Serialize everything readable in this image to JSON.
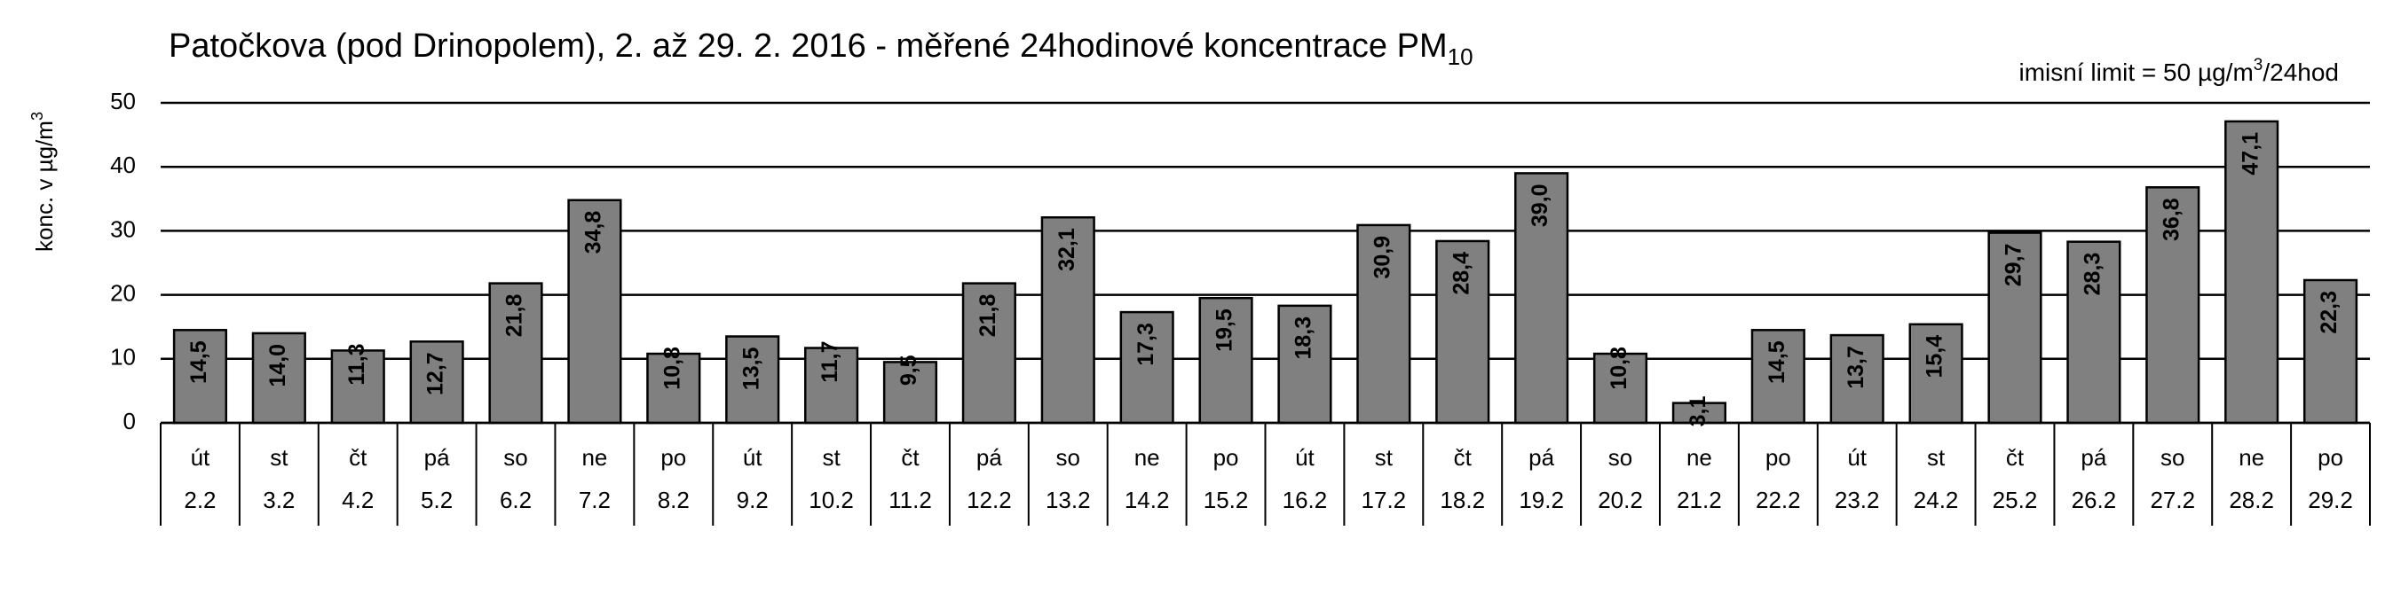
{
  "chart_data": {
    "type": "bar",
    "title": "Patočkova (pod Drinopolem), 2. až 29. 2. 2016 - měřené 24hodinové koncentrace PM",
    "title_subscript": "10",
    "annotation": [
      "imisní limit = 50 µg/m",
      "3",
      "/24hod"
    ],
    "y_label": [
      "konc. v µg/m",
      "3"
    ],
    "weekdays": [
      "út",
      "st",
      "čt",
      "pá",
      "so",
      "ne",
      "po",
      "út",
      "st",
      "čt",
      "pá",
      "so",
      "ne",
      "po",
      "út",
      "st",
      "čt",
      "pá",
      "so",
      "ne",
      "po",
      "út",
      "st",
      "čt",
      "pá",
      "so",
      "ne",
      "po"
    ],
    "categories": [
      "2.2",
      "3.2",
      "4.2",
      "5.2",
      "6.2",
      "7.2",
      "8.2",
      "9.2",
      "10.2",
      "11.2",
      "12.2",
      "13.2",
      "14.2",
      "15.2",
      "16.2",
      "17.2",
      "18.2",
      "19.2",
      "20.2",
      "21.2",
      "22.2",
      "23.2",
      "24.2",
      "25.2",
      "26.2",
      "27.2",
      "28.2",
      "29.2"
    ],
    "values": [
      14.5,
      14.0,
      11.3,
      12.7,
      21.8,
      34.8,
      10.8,
      13.5,
      11.7,
      9.5,
      21.8,
      32.1,
      17.3,
      19.5,
      18.3,
      30.9,
      28.4,
      39.0,
      10.8,
      3.1,
      14.5,
      13.7,
      15.4,
      29.7,
      28.3,
      36.8,
      47.1,
      22.3
    ],
    "value_labels": [
      "14,5",
      "14,0",
      "11,3",
      "12,7",
      "21,8",
      "34,8",
      "10,8",
      "13,5",
      "11,7",
      "9,5",
      "21,8",
      "32,1",
      "17,3",
      "19,5",
      "18,3",
      "30,9",
      "28,4",
      "39,0",
      "10,8",
      "3,1",
      "14,5",
      "13,7",
      "15,4",
      "29,7",
      "28,3",
      "36,8",
      "47,1",
      "22,3"
    ],
    "value_label_colors": [
      "#ffffff",
      "#ffffff",
      "#ffffff",
      "#ffffff",
      "#ffffff",
      "#ffffff",
      "#ffffff",
      "#ffffff",
      "#ffffff",
      "#ffffff",
      "#ffffff",
      "#ffffff",
      "#ffffff",
      "#ffffff",
      "#ffffff",
      "#ffffff",
      "#ffffff",
      "#ffffff",
      "#ffffff",
      "#000000",
      "#ffffff",
      "#ffffff",
      "#ffffff",
      "#ffffff",
      "#ffffff",
      "#ffffff",
      "#ff0000",
      "#ffffff"
    ],
    "color": "#808080",
    "ylim": [
      0,
      50
    ],
    "yticks": [
      0,
      10,
      20,
      30,
      40,
      50
    ],
    "grid": true
  }
}
